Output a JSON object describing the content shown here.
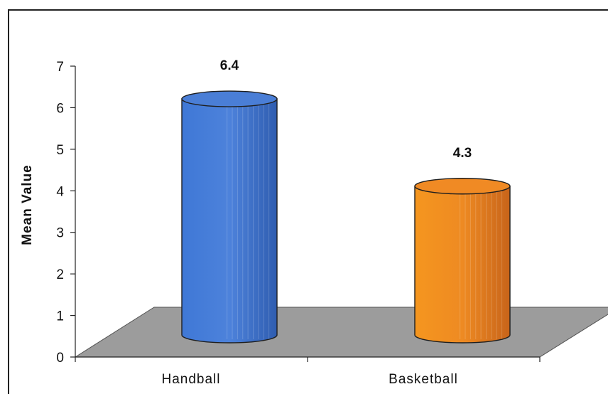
{
  "chart_data": {
    "type": "bar",
    "style": "3d-cylinder",
    "categories": [
      "Handball",
      "Basketball"
    ],
    "values": [
      6.4,
      4.3
    ],
    "data_labels": [
      "6.4",
      "4.3"
    ],
    "title": "",
    "xlabel": "",
    "ylabel": "Mean Value",
    "ylim": [
      0,
      7
    ],
    "yticks": [
      "0",
      "1",
      "2",
      "3",
      "4",
      "5",
      "6",
      "7"
    ],
    "grid": false,
    "legend": "none",
    "colors": {
      "bars": [
        "#4a7ed6",
        "#f08a24"
      ],
      "floor": "#9c9c9c",
      "frame": "#222222"
    }
  }
}
